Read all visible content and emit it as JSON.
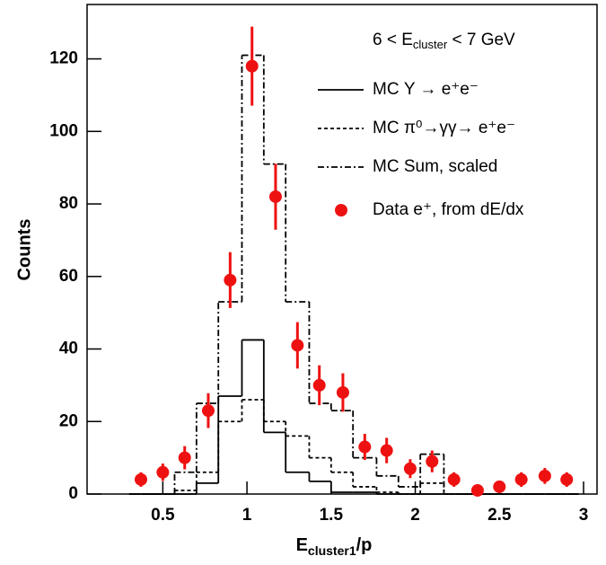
{
  "chart_data": {
    "type": "histogram",
    "ylabel": "Counts",
    "xlabel": [
      "E",
      "cluster1",
      "/p"
    ],
    "annotation": [
      "6 < E",
      "cluster",
      " < 7 GeV"
    ],
    "xlim": [
      0.05,
      3.08
    ],
    "xticks": [
      0.5,
      1,
      1.5,
      2,
      2.5,
      3
    ],
    "ylim": [
      0,
      135
    ],
    "yticks": [
      0,
      20,
      40,
      60,
      80,
      100,
      120
    ],
    "series": [
      {
        "name": "MC Υ → e⁺e⁻",
        "style": "solid",
        "color": "#000000",
        "bins": [
          0.3,
          0.43,
          0.57,
          0.7,
          0.83,
          0.97,
          1.1,
          1.23,
          1.37,
          1.5,
          1.63,
          1.77,
          1.9,
          2.03,
          2.17,
          2.3,
          2.43,
          2.57,
          2.7,
          2.83,
          2.97
        ],
        "values": [
          0,
          0,
          0,
          3,
          27,
          42.5,
          17,
          6,
          3.5,
          0.5,
          0.5,
          0,
          0,
          0,
          0,
          0,
          0,
          0,
          0,
          0
        ]
      },
      {
        "name": "MC π⁰→γγ→ e⁺e⁻",
        "style": "dashed",
        "color": "#000000",
        "bins": [
          0.3,
          0.43,
          0.57,
          0.7,
          0.83,
          0.97,
          1.1,
          1.23,
          1.37,
          1.5,
          1.63,
          1.77,
          1.9,
          2.03,
          2.17,
          2.3,
          2.43,
          2.57,
          2.7,
          2.83,
          2.97
        ],
        "values": [
          0,
          0,
          1,
          6,
          20,
          26,
          20,
          16,
          10,
          6,
          2,
          0.5,
          0,
          3,
          0,
          0,
          0,
          0,
          0,
          0
        ]
      },
      {
        "name": "MC Sum, scaled",
        "style": "dashdot",
        "color": "#000000",
        "bins": [
          0.3,
          0.43,
          0.57,
          0.7,
          0.83,
          0.97,
          1.1,
          1.23,
          1.37,
          1.5,
          1.63,
          1.77,
          1.9,
          2.03,
          2.17,
          2.3,
          2.43,
          2.57,
          2.7,
          2.83,
          2.97
        ],
        "values": [
          0,
          0,
          6,
          25,
          53,
          121,
          91,
          53,
          25,
          23,
          10,
          5,
          2,
          11,
          0,
          0,
          0,
          0,
          0,
          0
        ]
      },
      {
        "name": "Data e⁺, from dE/dx",
        "style": "points",
        "color": "#ee1111",
        "x": [
          0.37,
          0.5,
          0.63,
          0.77,
          0.9,
          1.03,
          1.17,
          1.3,
          1.43,
          1.57,
          1.7,
          1.83,
          1.97,
          2.1,
          2.23,
          2.37,
          2.5,
          2.63,
          2.77,
          2.9
        ],
        "values": [
          4,
          6,
          10,
          23,
          59,
          118,
          82,
          41,
          30,
          28,
          13,
          12,
          7,
          9,
          4,
          1,
          2,
          4,
          5,
          4
        ],
        "errors": [
          2,
          2.4,
          3.2,
          4.8,
          7.7,
          10.9,
          9.1,
          6.4,
          5.5,
          5.3,
          3.6,
          3.5,
          2.6,
          3,
          2,
          1,
          1.4,
          2,
          2.2,
          2
        ]
      }
    ]
  }
}
